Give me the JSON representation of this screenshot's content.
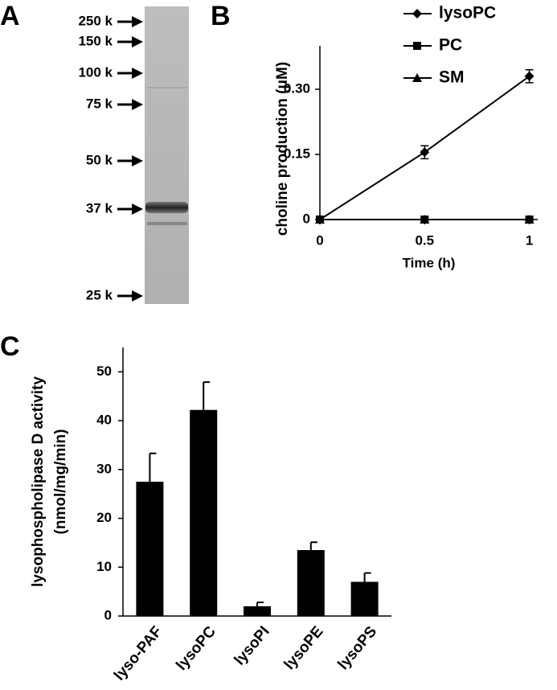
{
  "chart_data": [
    {
      "type": "gel",
      "panel": "A",
      "markers": [
        "250 k",
        "150 k",
        "100 k",
        "75 k",
        "50 k",
        "37 k",
        "25 k"
      ]
    },
    {
      "type": "line",
      "panel": "B",
      "xlabel": "Time (h)",
      "ylabel": "choline production (μM)",
      "x": [
        0,
        0.5,
        1
      ],
      "xlim": [
        0,
        1.04
      ],
      "xticks": [
        0,
        0.5,
        1
      ],
      "ylim": [
        0,
        0.4
      ],
      "yticks": [
        0,
        0.15,
        {
          "value": 0.3,
          "label": "0.30"
        }
      ],
      "legend": "top-right",
      "series": [
        {
          "name": "lysoPC",
          "color": "#000000",
          "marker": "diamond",
          "values": [
            0,
            0.155,
            0.33
          ],
          "errors": [
            0,
            0.015,
            0.015
          ]
        },
        {
          "name": "PC",
          "color": "#000000",
          "marker": "square",
          "values": [
            0,
            0,
            0
          ]
        },
        {
          "name": "SM",
          "color": "#000000",
          "marker": "triangle",
          "values": [
            0,
            0,
            0
          ]
        }
      ]
    },
    {
      "type": "bar",
      "panel": "C",
      "ylabel": [
        "lysophospholipase D activity",
        "(nmol/mg/min)"
      ],
      "categories": [
        "lyso-PAF",
        "lysoPC",
        "lysoPI",
        "lysoPE",
        "lysoPS"
      ],
      "values": [
        27.5,
        42.2,
        2,
        13.5,
        7
      ],
      "errors": [
        5.8,
        5.7,
        0.8,
        1.6,
        1.8
      ],
      "color": "#000000",
      "ylim": [
        0,
        55
      ],
      "yticks": [
        0,
        10,
        20,
        30,
        40,
        50
      ]
    }
  ]
}
